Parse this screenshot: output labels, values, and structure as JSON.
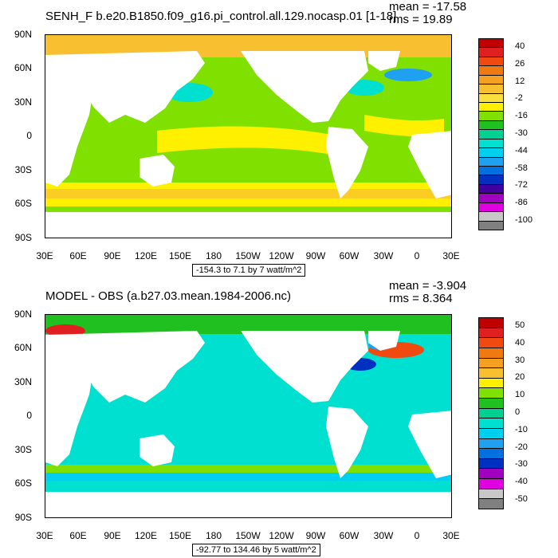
{
  "panels": [
    {
      "title": "SENH_F b.e20.B1850.f09_g16.pi_control.all.129.nocasp.01 [1-18]",
      "mean_text": "mean = -17.58",
      "rms_text": "rms = 19.89",
      "range_text": "-154.3 to 7.1 by 7 watt/m^2",
      "lat_labels": [
        "90N",
        "60N",
        "30N",
        "0",
        "30S",
        "60S",
        "90S"
      ],
      "lon_labels": [
        "30E",
        "60E",
        "90E",
        "120E",
        "150E",
        "180",
        "150W",
        "120W",
        "90W",
        "60W",
        "30W",
        "0",
        "30E"
      ],
      "colorbar": {
        "labels": [
          "40",
          "26",
          "12",
          "-2",
          "-16",
          "-30",
          "-44",
          "-58",
          "-72",
          "-86",
          "-100"
        ],
        "colors": [
          "#c00000",
          "#e02020",
          "#f04a10",
          "#f07a10",
          "#f5a020",
          "#f8c030",
          "#f8e040",
          "#fff000",
          "#80e000",
          "#20c020",
          "#00d090",
          "#00e0d0",
          "#00d0f0",
          "#20a0f0",
          "#0070e0",
          "#0030c0",
          "#4000a0",
          "#a000c0",
          "#e000e0",
          "#c8c8c8",
          "#808080"
        ]
      }
    },
    {
      "title": "MODEL - OBS (a.b27.03.mean.1984-2006.nc)",
      "mean_text": "mean = -3.904",
      "rms_text": "rms = 8.364",
      "range_text": "-92.77 to 134.46 by 5 watt/m^2",
      "lat_labels": [
        "90N",
        "60N",
        "30N",
        "0",
        "30S",
        "60S",
        "90S"
      ],
      "lon_labels": [
        "30E",
        "60E",
        "90E",
        "120E",
        "150E",
        "180",
        "150W",
        "120W",
        "90W",
        "60W",
        "30W",
        "0",
        "30E"
      ],
      "colorbar": {
        "labels": [
          "50",
          "40",
          "30",
          "20",
          "10",
          "0",
          "-10",
          "-20",
          "-30",
          "-40",
          "-50"
        ],
        "colors": [
          "#c00000",
          "#e02020",
          "#f04a10",
          "#f07a10",
          "#f5a020",
          "#f8c030",
          "#fff000",
          "#80e000",
          "#20c020",
          "#00d090",
          "#00e0d0",
          "#00d0f0",
          "#20a0f0",
          "#0070e0",
          "#0030c0",
          "#a000c0",
          "#e000e0",
          "#c8c8c8",
          "#808080"
        ]
      }
    }
  ]
}
